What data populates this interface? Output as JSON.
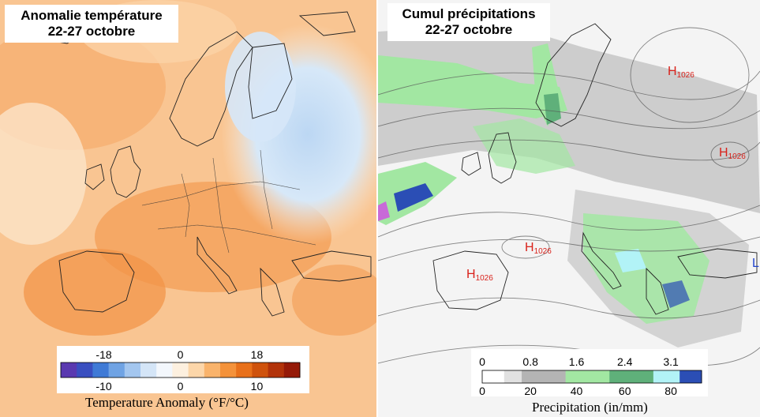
{
  "left_map": {
    "title_line1": "Anomalie température",
    "title_line2": "22-27 octobre",
    "legend": {
      "top_ticks": [
        "-18",
        "0",
        "18"
      ],
      "bottom_ticks": [
        "-10",
        "0",
        "10"
      ],
      "caption": "Temperature Anomaly (°F/°C)",
      "colors": [
        "#5a39b0",
        "#3a4fc0",
        "#3f7ad6",
        "#6fa3e4",
        "#a3c6ef",
        "#d4e5f7",
        "#f3f7fc",
        "#fdf0df",
        "#fcd6a9",
        "#f9b36b",
        "#f4923a",
        "#e8701a",
        "#cf520c",
        "#b2330a",
        "#951a08"
      ]
    }
  },
  "right_map": {
    "title_line1": "Cumul précipitations",
    "title_line2": "22-27 octobre",
    "pressure_labels": [
      {
        "letter": "H",
        "value": "1026"
      },
      {
        "letter": "H",
        "value": "1026"
      },
      {
        "letter": "H",
        "value": "1026"
      },
      {
        "letter": "H",
        "value": "1026"
      },
      {
        "letter": "L",
        "value": ""
      }
    ],
    "legend": {
      "top_ticks": [
        "0",
        "0.8",
        "1.6",
        "2.4",
        "3.1"
      ],
      "bottom_ticks": [
        "0",
        "20",
        "40",
        "60",
        "80"
      ],
      "caption": "Precipitation (in/mm)",
      "colors": [
        "#ffffff",
        "#e1e1e1",
        "#b4b4b4",
        "#a2e7a2",
        "#5fb07a",
        "#b2f3f7",
        "#2b4eb5"
      ]
    }
  }
}
